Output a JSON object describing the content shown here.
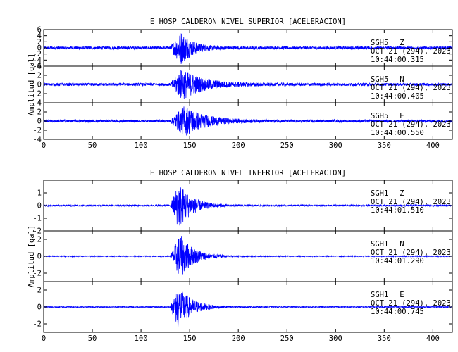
{
  "chart_data": [
    {
      "type": "line",
      "title": "E HOSP CALDERON NIVEL SUPERIOR [ACELERACION]",
      "ylabel": "Amplitud [gal]",
      "xlim": [
        0,
        420
      ],
      "xticks": [
        0,
        50,
        100,
        150,
        200,
        250,
        300,
        350,
        400
      ],
      "panels": [
        {
          "station": "SGH5",
          "component": "Z",
          "date": "OCT 21 (294), 2023",
          "time": "10:44:00.315",
          "ylim": [
            -6,
            6
          ],
          "yticks": [
            -6,
            -4,
            -2,
            0,
            2,
            4,
            6
          ],
          "noise": 0.5,
          "onset": 130,
          "peak_time": 141,
          "peak": 5.8,
          "decay": 12
        },
        {
          "station": "SGH5",
          "component": "N",
          "date": "OCT 21 (294), 2023",
          "time": "10:44:00.405",
          "ylim": [
            -4,
            4
          ],
          "yticks": [
            -4,
            -2,
            0,
            2,
            4
          ],
          "noise": 0.3,
          "onset": 130,
          "peak_time": 142,
          "peak": 3.6,
          "decay": 22
        },
        {
          "station": "SGH5",
          "component": "E",
          "date": "OCT 21 (294), 2023",
          "time": "10:44:00.550",
          "ylim": [
            -4,
            4
          ],
          "yticks": [
            -4,
            -2,
            0,
            2,
            4
          ],
          "noise": 0.3,
          "onset": 130,
          "peak_time": 145,
          "peak": 3.6,
          "decay": 20
        }
      ]
    },
    {
      "type": "line",
      "title": "E HOSP CALDERON NIVEL INFERIOR [ACELERACION]",
      "ylabel": "Amplitud [gal]",
      "xlim": [
        0,
        420
      ],
      "xticks": [
        0,
        50,
        100,
        150,
        200,
        250,
        300,
        350,
        400
      ],
      "panels": [
        {
          "station": "SGH1",
          "component": "Z",
          "date": "OCT 21 (294), 2023",
          "time": "10:44:01.510",
          "ylim": [
            -2,
            2
          ],
          "yticks": [
            -2,
            -1,
            0,
            1
          ],
          "noise": 0.06,
          "onset": 130,
          "peak_time": 139,
          "peak": 1.9,
          "decay": 13
        },
        {
          "station": "SGH1",
          "component": "N",
          "date": "OCT 21 (294), 2023",
          "time": "10:44:01.290",
          "ylim": [
            -3,
            3
          ],
          "yticks": [
            -2,
            0,
            2
          ],
          "noise": 0.05,
          "onset": 130,
          "peak_time": 140,
          "peak": 2.7,
          "decay": 14
        },
        {
          "station": "SGH1",
          "component": "E",
          "date": "OCT 21 (294), 2023",
          "time": "10:44:00.745",
          "ylim": [
            -3,
            3
          ],
          "yticks": [
            -2,
            0,
            2
          ],
          "noise": 0.06,
          "onset": 130,
          "peak_time": 138,
          "peak": 2.6,
          "decay": 14
        }
      ]
    }
  ],
  "colors": {
    "trace": "#0000ff",
    "axis": "#000000",
    "background": "#ffffff"
  }
}
